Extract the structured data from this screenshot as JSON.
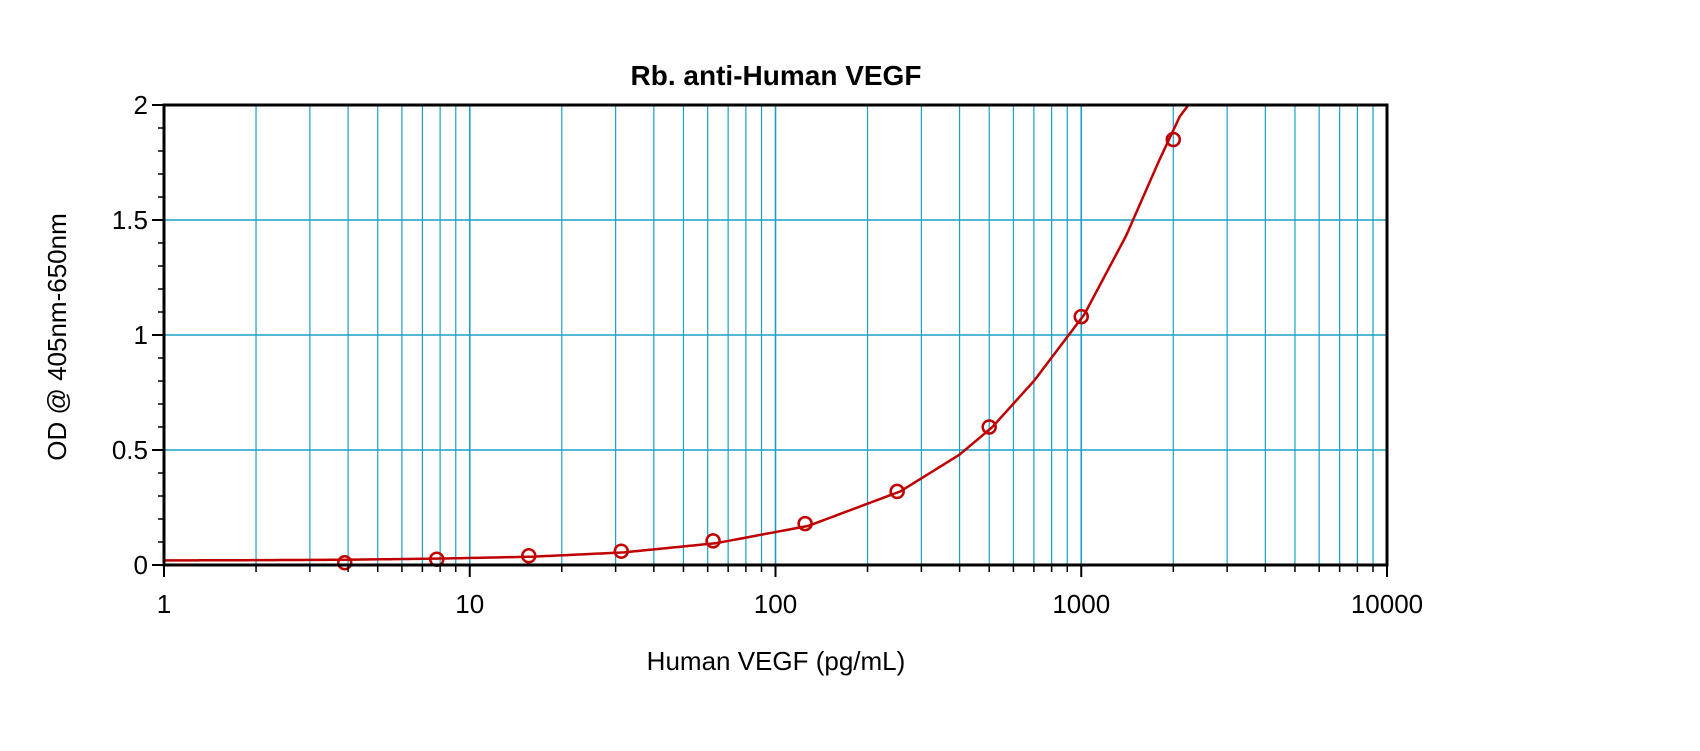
{
  "chart_data": {
    "type": "scatter",
    "title": "Rb. anti-Human VEGF",
    "xlabel": "Human VEGF (pg/mL)",
    "ylabel": "OD @ 405nm-650nm",
    "x_scale": "log",
    "xlim": [
      1,
      10000
    ],
    "ylim": [
      0,
      2
    ],
    "x_ticks": [
      1,
      10,
      100,
      1000,
      10000
    ],
    "x_tick_labels": [
      "1",
      "10",
      "100",
      "1000",
      "10000"
    ],
    "y_ticks": [
      0,
      0.5,
      1,
      1.5,
      2
    ],
    "y_tick_labels": [
      "0",
      "0.5",
      "1",
      "1.5",
      "2"
    ],
    "grid": true,
    "legend": "none",
    "series": [
      {
        "points": [
          {
            "x": 3.9,
            "y": 0.01
          },
          {
            "x": 7.8,
            "y": 0.025
          },
          {
            "x": 15.6,
            "y": 0.04
          },
          {
            "x": 31.3,
            "y": 0.06
          },
          {
            "x": 62.5,
            "y": 0.105
          },
          {
            "x": 125,
            "y": 0.18
          },
          {
            "x": 250,
            "y": 0.32
          },
          {
            "x": 500,
            "y": 0.6
          },
          {
            "x": 1000,
            "y": 1.08
          },
          {
            "x": 2000,
            "y": 1.85
          }
        ]
      }
    ],
    "fit_curve": {
      "x": [
        1,
        2,
        4,
        8,
        16,
        32,
        64,
        128,
        256,
        400,
        512,
        700,
        1024,
        1400,
        1800,
        2100,
        2300
      ],
      "y": [
        0.02,
        0.021,
        0.023,
        0.028,
        0.036,
        0.055,
        0.095,
        0.17,
        0.32,
        0.48,
        0.6,
        0.8,
        1.09,
        1.43,
        1.76,
        1.95,
        2.02
      ]
    },
    "colors": {
      "grid": "#1a9fc9",
      "series": "#c00000",
      "axes": "#000000"
    }
  }
}
